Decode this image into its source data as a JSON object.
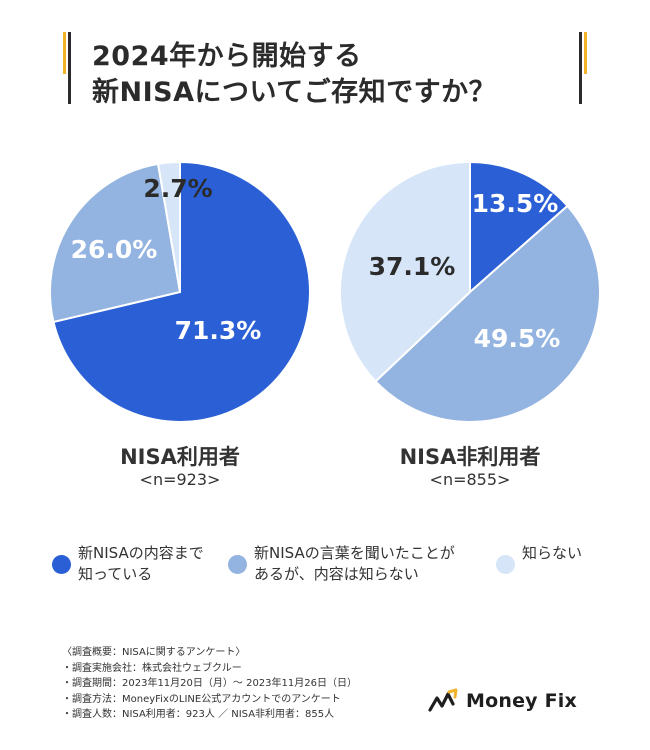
{
  "title": {
    "line1": "2024年から開始する",
    "line2": "新NISAについてご存知ですか？"
  },
  "colors": {
    "know": "#2a5fd6",
    "heard": "#93b3e0",
    "unknown": "#d6e5f8",
    "accent": "#f0b32a"
  },
  "chart_data": [
    {
      "type": "pie",
      "title": "NISA利用者",
      "subtitle": "<n=923>",
      "categories": [
        "新NISAの内容まで知っている",
        "新NISAの言葉を聞いたことがあるが、内容は知らない",
        "知らない"
      ],
      "values": [
        71.3,
        26.0,
        2.7
      ],
      "value_labels": [
        "71.3%",
        "26.0%",
        "2.7%"
      ]
    },
    {
      "type": "pie",
      "title": "NISA非利用者",
      "subtitle": "<n=855>",
      "categories": [
        "新NISAの内容まで知っている",
        "新NISAの言葉を聞いたことがあるが、内容は知らない",
        "知らない"
      ],
      "values": [
        13.5,
        49.5,
        37.1
      ],
      "value_labels": [
        "13.5%",
        "49.5%",
        "37.1%"
      ]
    }
  ],
  "legend": [
    {
      "line1": "新NISAの内容まで",
      "line2": "知っている"
    },
    {
      "line1": "新NISAの言葉を聞いたことが",
      "line2": "あるが、内容は知らない"
    },
    {
      "line1": "知らない",
      "line2": ""
    }
  ],
  "notes": [
    "〈調査概要：NISAに関するアンケート〉",
    "・調査実施会社：株式会社ウェブクルー",
    "・調査期間：2023年11月20日（月）〜 2023年11月26日（日）",
    "・調査方法：MoneyFixのLINE公式アカウントでのアンケート",
    "・調査人数：NISA利用者：923人 ／ NISA非利用者：855人"
  ],
  "logo": {
    "text": "Money Fix"
  }
}
